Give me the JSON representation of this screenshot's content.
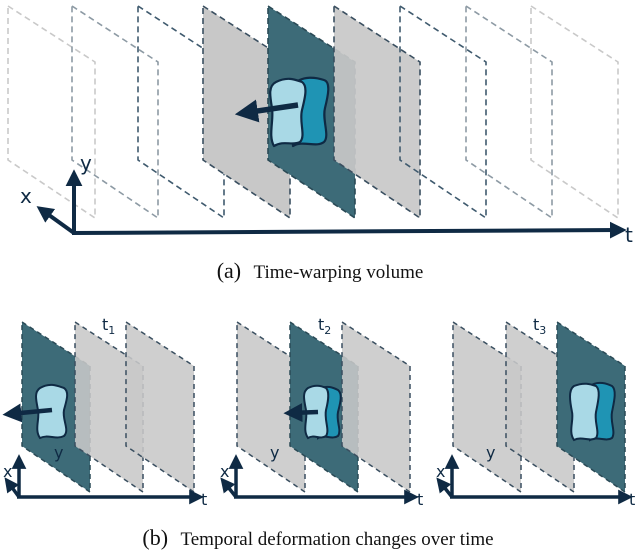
{
  "figure": {
    "panel_a": {
      "caption_tag": "(a)",
      "caption_text": "Time-warping volume",
      "axis_x": "x",
      "axis_y": "y",
      "axis_t": "t"
    },
    "panel_b": {
      "caption_tag": "(b)",
      "caption_text": "Temporal deformation changes over time",
      "axis_x": "x",
      "axis_y": "y",
      "axis_t": "t",
      "subpanels": [
        {
          "time_base": "t",
          "time_sub": "1"
        },
        {
          "time_base": "t",
          "time_sub": "2"
        },
        {
          "time_base": "t",
          "time_sub": "3"
        }
      ]
    }
  },
  "colors": {
    "axis": "#0f2a44",
    "frame_dark": "#3d6b78",
    "frame_gray": "#c8c8c8",
    "object_light": "#a9d9e6",
    "object_dark": "#1f94b4"
  }
}
